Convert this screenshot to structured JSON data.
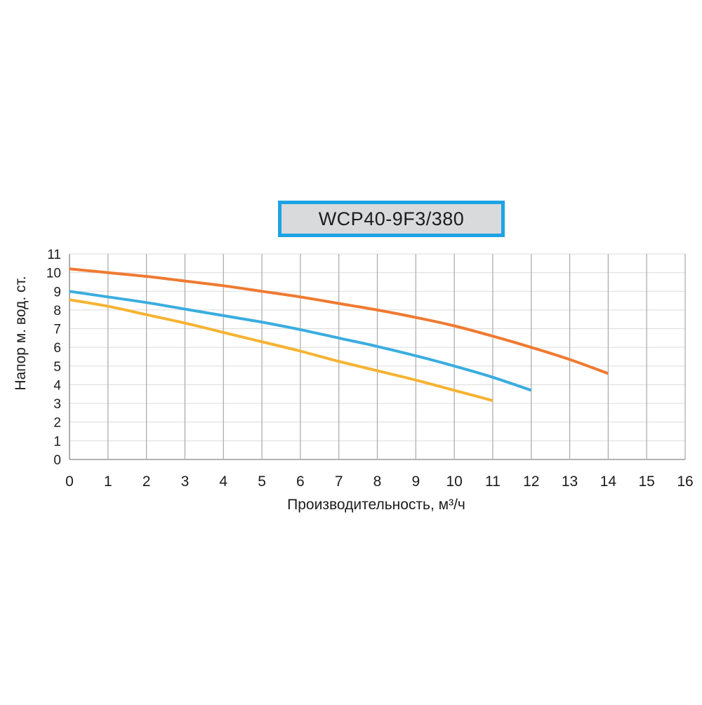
{
  "chart_data": {
    "type": "line",
    "title": "WCP40-9F3/380",
    "xlabel": "Производительность, м³/ч",
    "ylabel": "Напор м. вод. ст.",
    "xlim": [
      0,
      16
    ],
    "ylim": [
      0,
      11
    ],
    "x_ticks": [
      0,
      1,
      2,
      3,
      4,
      5,
      6,
      7,
      8,
      9,
      10,
      11,
      12,
      13,
      14,
      15,
      16
    ],
    "y_ticks": [
      0,
      1,
      2,
      3,
      4,
      5,
      6,
      7,
      8,
      9,
      10,
      11
    ],
    "grid": true,
    "series": [
      {
        "color": "#ef7a31",
        "x": [
          0,
          1,
          2,
          3,
          4,
          5,
          6,
          7,
          8,
          9,
          10,
          11,
          12,
          13,
          14
        ],
        "y": [
          10.2,
          10.0,
          9.8,
          9.55,
          9.3,
          9.0,
          8.7,
          8.35,
          8.0,
          7.6,
          7.15,
          6.6,
          6.0,
          5.35,
          4.6
        ]
      },
      {
        "color": "#3aaddf",
        "x": [
          0,
          1,
          2,
          3,
          4,
          5,
          6,
          7,
          8,
          9,
          10,
          11,
          12
        ],
        "y": [
          9.0,
          8.7,
          8.4,
          8.05,
          7.7,
          7.35,
          6.95,
          6.5,
          6.05,
          5.55,
          5.0,
          4.4,
          3.7
        ]
      },
      {
        "color": "#f6b332",
        "x": [
          0,
          1,
          2,
          3,
          4,
          5,
          6,
          7,
          8,
          9,
          10,
          11
        ],
        "y": [
          8.55,
          8.2,
          7.75,
          7.3,
          6.8,
          6.3,
          5.8,
          5.25,
          4.75,
          4.25,
          3.7,
          3.15
        ]
      }
    ]
  }
}
